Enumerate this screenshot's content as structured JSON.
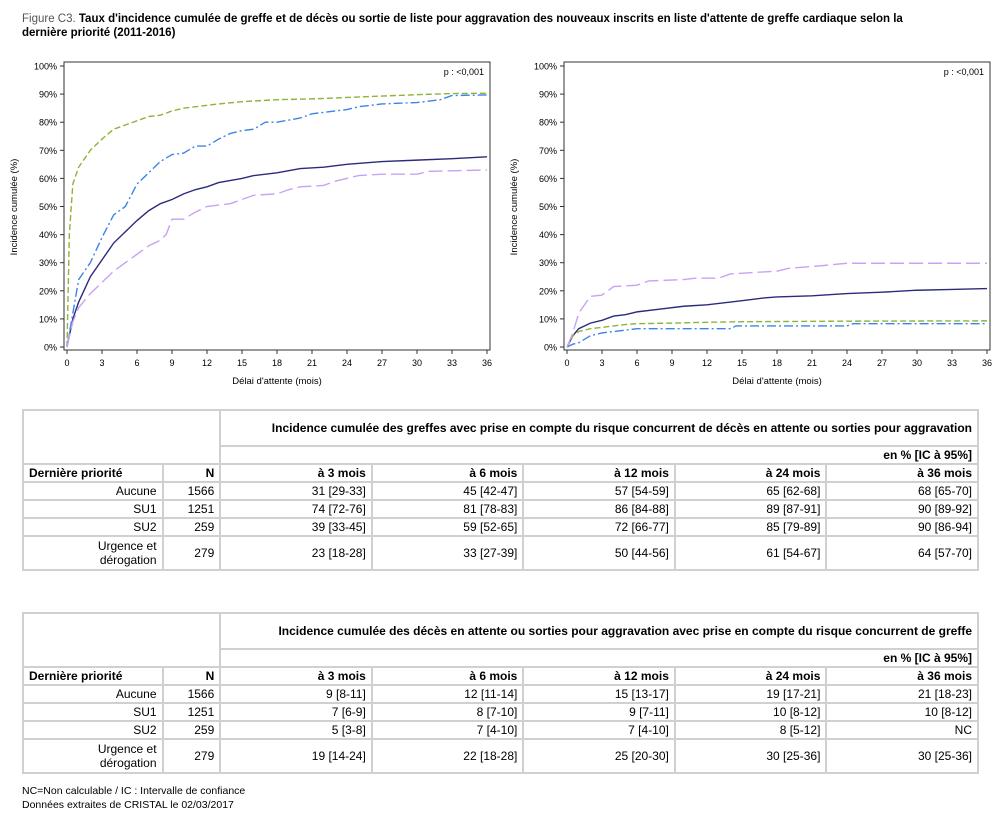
{
  "title": {
    "figure_label": "Figure C3.",
    "text": " Taux d'incidence cumulée de greffe et de décès ou sortie de liste pour aggravation des nouveaux inscrits en liste d'attente de greffe cardiaque selon la dernière priorité (2011-2016)"
  },
  "colors": {
    "Aucune": "#2b2b7a",
    "SU1": "#8db33a",
    "SU2": "#3d84e6",
    "Urgence et dérogation": "#c9a2f2"
  },
  "chart_data": [
    {
      "type": "line",
      "xlabel": "Délai d'attente (mois)",
      "ylabel": "Incidence cumulée (%)",
      "annotation": "p : <0,001",
      "xlim": [
        0,
        36
      ],
      "ylim": [
        0,
        100
      ],
      "xticks": [
        "0",
        "3",
        "6",
        "9",
        "12",
        "15",
        "18",
        "21",
        "24",
        "27",
        "30",
        "33",
        "36"
      ],
      "yticks": [
        "0%",
        "10%",
        "20%",
        "30%",
        "40%",
        "50%",
        "60%",
        "70%",
        "80%",
        "90%",
        "100%"
      ],
      "grid": false,
      "series": [
        {
          "key": "Aucune",
          "style": "solid",
          "points": [
            [
              0,
              0
            ],
            [
              0.5,
              10
            ],
            [
              1,
              16
            ],
            [
              2,
              25
            ],
            [
              3,
              31
            ],
            [
              4,
              37
            ],
            [
              5,
              41
            ],
            [
              6,
              45
            ],
            [
              7,
              48.5
            ],
            [
              8,
              51
            ],
            [
              9,
              52.5
            ],
            [
              10,
              54.5
            ],
            [
              11,
              56
            ],
            [
              12,
              57
            ],
            [
              13,
              58.5
            ],
            [
              15,
              60
            ],
            [
              16,
              61
            ],
            [
              18,
              62
            ],
            [
              20,
              63.5
            ],
            [
              22,
              64
            ],
            [
              24,
              65
            ],
            [
              27,
              66
            ],
            [
              30,
              66.5
            ],
            [
              33,
              67
            ],
            [
              36,
              67.7
            ]
          ]
        },
        {
          "key": "SU1",
          "style": "dash",
          "points": [
            [
              0,
              0
            ],
            [
              0.2,
              40
            ],
            [
              0.5,
              58
            ],
            [
              1,
              64
            ],
            [
              2,
              70
            ],
            [
              3,
              74
            ],
            [
              4,
              77.5
            ],
            [
              5,
              79
            ],
            [
              6,
              80.5
            ],
            [
              7,
              82
            ],
            [
              8,
              82.5
            ],
            [
              9,
              84
            ],
            [
              10,
              85
            ],
            [
              12,
              86
            ],
            [
              13,
              86.5
            ],
            [
              15,
              87.3
            ],
            [
              18,
              88
            ],
            [
              21,
              88.3
            ],
            [
              24,
              88.8
            ],
            [
              27,
              89.3
            ],
            [
              30,
              89.8
            ],
            [
              33,
              90.2
            ],
            [
              36,
              90.3
            ]
          ]
        },
        {
          "key": "SU2",
          "style": "dashdot",
          "points": [
            [
              0,
              0
            ],
            [
              0.5,
              12
            ],
            [
              1,
              24
            ],
            [
              2,
              30
            ],
            [
              3,
              39
            ],
            [
              4,
              47
            ],
            [
              5,
              50
            ],
            [
              6,
              58
            ],
            [
              7,
              62
            ],
            [
              8,
              66
            ],
            [
              9,
              68.5
            ],
            [
              10,
              69
            ],
            [
              11,
              71.5
            ],
            [
              12,
              71.5
            ],
            [
              13,
              74
            ],
            [
              14,
              76
            ],
            [
              15,
              77
            ],
            [
              16,
              77.5
            ],
            [
              17,
              80
            ],
            [
              18,
              80
            ],
            [
              20,
              81.5
            ],
            [
              21,
              83
            ],
            [
              23,
              84
            ],
            [
              24,
              84.5
            ],
            [
              25,
              85.5
            ],
            [
              27,
              86.5
            ],
            [
              30,
              87
            ],
            [
              32,
              88
            ],
            [
              33,
              89.5
            ],
            [
              36,
              89.7
            ]
          ]
        },
        {
          "key": "Urgence et dérogation",
          "style": "longdash",
          "points": [
            [
              0,
              0
            ],
            [
              0.5,
              9
            ],
            [
              1,
              14
            ],
            [
              2,
              19
            ],
            [
              3,
              23
            ],
            [
              4,
              27
            ],
            [
              5,
              30
            ],
            [
              6,
              33
            ],
            [
              7,
              36
            ],
            [
              8,
              38
            ],
            [
              8.5,
              40
            ],
            [
              9,
              45.5
            ],
            [
              10,
              45.5
            ],
            [
              11,
              48
            ],
            [
              12,
              50
            ],
            [
              13,
              50.5
            ],
            [
              14,
              51
            ],
            [
              15,
              52.5
            ],
            [
              16,
              54
            ],
            [
              18,
              54.5
            ],
            [
              19,
              56
            ],
            [
              20,
              57
            ],
            [
              22,
              57.5
            ],
            [
              23,
              59
            ],
            [
              24,
              60
            ],
            [
              25,
              61
            ],
            [
              27,
              61.5
            ],
            [
              30,
              61.5
            ],
            [
              31,
              62.5
            ],
            [
              36,
              63
            ]
          ]
        }
      ]
    },
    {
      "type": "line",
      "xlabel": "Délai d'attente (mois)",
      "ylabel": "Incidence cumulée (%)",
      "annotation": "p : <0,001",
      "xlim": [
        0,
        36
      ],
      "ylim": [
        0,
        100
      ],
      "xticks": [
        "0",
        "3",
        "6",
        "9",
        "12",
        "15",
        "18",
        "21",
        "24",
        "27",
        "30",
        "33",
        "36"
      ],
      "yticks": [
        "0%",
        "10%",
        "20%",
        "30%",
        "40%",
        "50%",
        "60%",
        "70%",
        "80%",
        "90%",
        "100%"
      ],
      "grid": false,
      "series": [
        {
          "key": "Aucune",
          "style": "solid",
          "points": [
            [
              0,
              0
            ],
            [
              0.5,
              4
            ],
            [
              1,
              6.5
            ],
            [
              2,
              8.5
            ],
            [
              3,
              9.5
            ],
            [
              4,
              11
            ],
            [
              5,
              11.5
            ],
            [
              6,
              12.5
            ],
            [
              8,
              13.5
            ],
            [
              10,
              14.5
            ],
            [
              12,
              15
            ],
            [
              14,
              16
            ],
            [
              15,
              16.5
            ],
            [
              17,
              17.5
            ],
            [
              18,
              17.8
            ],
            [
              21,
              18.2
            ],
            [
              24,
              19
            ],
            [
              27,
              19.5
            ],
            [
              30,
              20.2
            ],
            [
              33,
              20.5
            ],
            [
              36,
              20.8
            ]
          ]
        },
        {
          "key": "SU1",
          "style": "dash",
          "points": [
            [
              0,
              0
            ],
            [
              0.5,
              4
            ],
            [
              1,
              5.5
            ],
            [
              2,
              6.5
            ],
            [
              3,
              7
            ],
            [
              4,
              7.5
            ],
            [
              5,
              8
            ],
            [
              6,
              8.3
            ],
            [
              9,
              8.5
            ],
            [
              12,
              8.8
            ],
            [
              15,
              9
            ],
            [
              24,
              9.2
            ],
            [
              36,
              9.3
            ]
          ]
        },
        {
          "key": "SU2",
          "style": "dashdot",
          "points": [
            [
              0,
              0
            ],
            [
              0.5,
              1
            ],
            [
              1,
              1.5
            ],
            [
              2,
              4
            ],
            [
              3,
              5
            ],
            [
              5,
              6
            ],
            [
              6,
              6.5
            ],
            [
              14,
              6.5
            ],
            [
              14.5,
              7.5
            ],
            [
              24,
              7.5
            ],
            [
              24.5,
              8.3
            ],
            [
              36,
              8.3
            ]
          ]
        },
        {
          "key": "Urgence et dérogation",
          "style": "longdash",
          "points": [
            [
              0,
              0
            ],
            [
              0.5,
              5
            ],
            [
              1,
              12
            ],
            [
              2,
              18
            ],
            [
              3,
              18.5
            ],
            [
              4,
              21.5
            ],
            [
              6,
              22
            ],
            [
              7,
              23.5
            ],
            [
              10,
              24
            ],
            [
              11,
              24.5
            ],
            [
              13,
              24.5
            ],
            [
              14,
              26
            ],
            [
              16,
              26.5
            ],
            [
              18,
              27
            ],
            [
              19,
              28
            ],
            [
              22,
              29
            ],
            [
              24,
              29.8
            ],
            [
              36,
              29.8
            ]
          ]
        }
      ]
    }
  ],
  "tables": [
    {
      "caption": "Incidence cumulée des greffes avec prise en compte du risque concurrent de décès en attente ou sorties pour aggravation",
      "unit": "en % [IC à 95%]",
      "headers": [
        "Dernière priorité",
        "N",
        "à 3 mois",
        "à 6 mois",
        "à 12 mois",
        "à 24 mois",
        "à 36 mois"
      ],
      "rows": [
        [
          "Aucune",
          "1566",
          "31 [29-33]",
          "45 [42-47]",
          "57 [54-59]",
          "65 [62-68]",
          "68 [65-70]"
        ],
        [
          "SU1",
          "1251",
          "74 [72-76]",
          "81 [78-83]",
          "86 [84-88]",
          "89 [87-91]",
          "90 [89-92]"
        ],
        [
          "SU2",
          "259",
          "39 [33-45]",
          "59 [52-65]",
          "72 [66-77]",
          "85 [79-89]",
          "90 [86-94]"
        ],
        [
          "Urgence et dérogation",
          "279",
          "23 [18-28]",
          "33 [27-39]",
          "50 [44-56]",
          "61 [54-67]",
          "64 [57-70]"
        ]
      ]
    },
    {
      "caption": "Incidence cumulée des décès en attente ou sorties pour aggravation avec prise en compte du risque concurrent de greffe",
      "unit": "en % [IC à 95%]",
      "headers": [
        "Dernière priorité",
        "N",
        "à 3 mois",
        "à 6 mois",
        "à 12 mois",
        "à 24 mois",
        "à 36 mois"
      ],
      "rows": [
        [
          "Aucune",
          "1566",
          "9 [8-11]",
          "12 [11-14]",
          "15 [13-17]",
          "19 [17-21]",
          "21 [18-23]"
        ],
        [
          "SU1",
          "1251",
          "7 [6-9]",
          "8 [7-10]",
          "9 [7-11]",
          "10 [8-12]",
          "10 [8-12]"
        ],
        [
          "SU2",
          "259",
          "5 [3-8]",
          "7 [4-10]",
          "7 [4-10]",
          "8 [5-12]",
          "NC"
        ],
        [
          "Urgence et dérogation",
          "279",
          "19 [14-24]",
          "22 [18-28]",
          "25 [20-30]",
          "30 [25-36]",
          "30 [25-36]"
        ]
      ]
    }
  ],
  "footer": {
    "note": "NC=Non calculable / IC : Intervalle de confiance",
    "source": "Données extraites de CRISTAL le 02/03/2017"
  }
}
